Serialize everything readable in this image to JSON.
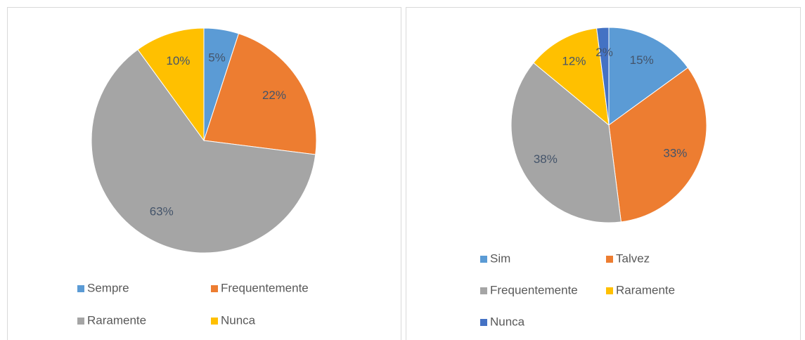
{
  "chart_data": [
    {
      "type": "pie",
      "categories": [
        "Sempre",
        "Frequentemente",
        "Raramente",
        "Nunca"
      ],
      "values": [
        5,
        22,
        63,
        10
      ],
      "value_labels": [
        "5%",
        "22%",
        "63%",
        "10%"
      ],
      "colors": [
        "#5b9bd5",
        "#ed7d31",
        "#a5a5a5",
        "#ffc000"
      ],
      "legend": "bottom"
    },
    {
      "type": "pie",
      "categories": [
        "Sim",
        "Talvez",
        "Frequentemente",
        "Raramente",
        "Nunca"
      ],
      "values": [
        15,
        33,
        38,
        12,
        2
      ],
      "value_labels": [
        "15%",
        "33%",
        "38%",
        "12%",
        "2%"
      ],
      "colors": [
        "#5b9bd5",
        "#ed7d31",
        "#a5a5a5",
        "#ffc000",
        "#4472c4"
      ],
      "legend": "bottom"
    }
  ]
}
